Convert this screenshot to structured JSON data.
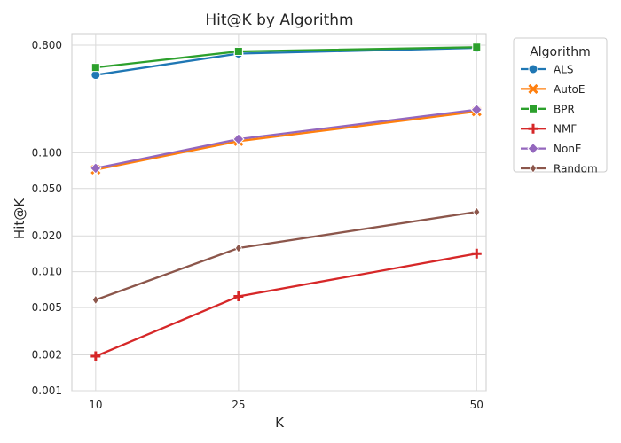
{
  "chart_data": {
    "type": "line",
    "title": "Hit@K by Algorithm",
    "xlabel": "K",
    "ylabel": "Hit@K",
    "x": [
      10,
      25,
      50
    ],
    "x_tick_labels": [
      "10",
      "25",
      "50"
    ],
    "y_scale": "log",
    "ylim": [
      0.001,
      1.0
    ],
    "y_ticks": [
      0.001,
      0.002,
      0.005,
      0.01,
      0.02,
      0.05,
      0.1,
      0.8
    ],
    "y_tick_labels": [
      "0.001",
      "0.002",
      "0.005",
      "0.010",
      "0.020",
      "0.050",
      "0.100",
      "0.800"
    ],
    "grid": true,
    "legend": {
      "title": "Algorithm",
      "placement": "outside-right"
    },
    "series": [
      {
        "name": "ALS",
        "values": [
          0.45,
          0.68,
          0.76
        ],
        "color": "#1f77b4",
        "marker": "circle"
      },
      {
        "name": "AutoE",
        "values": [
          0.072,
          0.125,
          0.222
        ],
        "color": "#ff7f0e",
        "marker": "x"
      },
      {
        "name": "BPR",
        "values": [
          0.52,
          0.71,
          0.77
        ],
        "color": "#2ca02c",
        "marker": "square"
      },
      {
        "name": "NMF",
        "values": [
          0.00195,
          0.0062,
          0.0142
        ],
        "color": "#d62728",
        "marker": "plus"
      },
      {
        "name": "NonE",
        "values": [
          0.074,
          0.13,
          0.23
        ],
        "color": "#9467bd",
        "marker": "diamond"
      },
      {
        "name": "Random",
        "values": [
          0.0058,
          0.0158,
          0.0318
        ],
        "color": "#8c564b",
        "marker": "thin-diamond"
      }
    ]
  }
}
